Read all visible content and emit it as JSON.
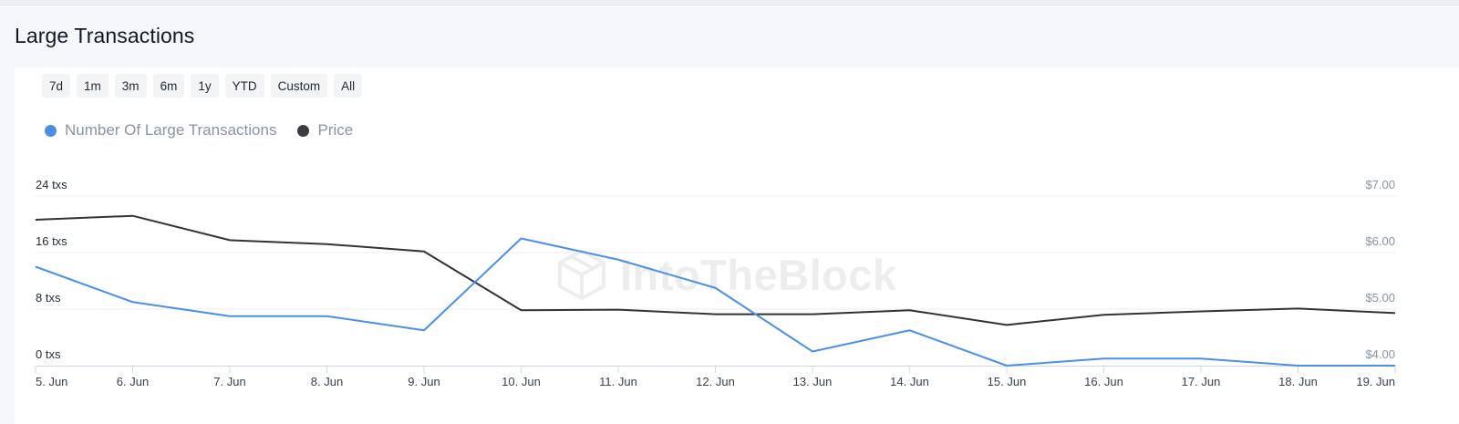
{
  "page": {
    "title": "Large Transactions"
  },
  "range_buttons": [
    "7d",
    "1m",
    "3m",
    "6m",
    "1y",
    "YTD",
    "Custom",
    "All"
  ],
  "watermark": {
    "text": "IntoTheBlock",
    "icon": "itb-cube-logo-icon"
  },
  "colors": {
    "transactions": "#4a90e2",
    "price": "#333333",
    "grid": "#eceef2",
    "axis": "#cfd8e6"
  },
  "chart_data": {
    "type": "line",
    "title": "",
    "legend_placement": "top-left",
    "grid": true,
    "categories": [
      "5. Jun",
      "6. Jun",
      "7. Jun",
      "8. Jun",
      "9. Jun",
      "10. Jun",
      "11. Jun",
      "12. Jun",
      "13. Jun",
      "14. Jun",
      "15. Jun",
      "16. Jun",
      "17. Jun",
      "18. Jun",
      "19. Jun"
    ],
    "y_left": {
      "ticks": [
        "0 txs",
        "8 txs",
        "16 txs",
        "24 txs"
      ],
      "tick_values": [
        0,
        8,
        16,
        24
      ],
      "range": [
        0,
        24
      ]
    },
    "y_right": {
      "ticks": [
        "$4.00",
        "$5.00",
        "$6.00",
        "$7.00"
      ],
      "tick_values": [
        4,
        5,
        6,
        7
      ],
      "range": [
        4,
        7
      ]
    },
    "series": [
      {
        "name": "Number Of Large Transactions",
        "axis": "left",
        "values": [
          14,
          9,
          7,
          7,
          5,
          18,
          15,
          11,
          2,
          5,
          0,
          1,
          1,
          0,
          0
        ]
      },
      {
        "name": "Price",
        "axis": "right",
        "values": [
          6.58,
          6.65,
          6.22,
          6.15,
          6.02,
          4.98,
          4.99,
          4.91,
          4.91,
          4.98,
          4.72,
          4.9,
          4.96,
          5.01,
          4.93
        ]
      }
    ]
  }
}
